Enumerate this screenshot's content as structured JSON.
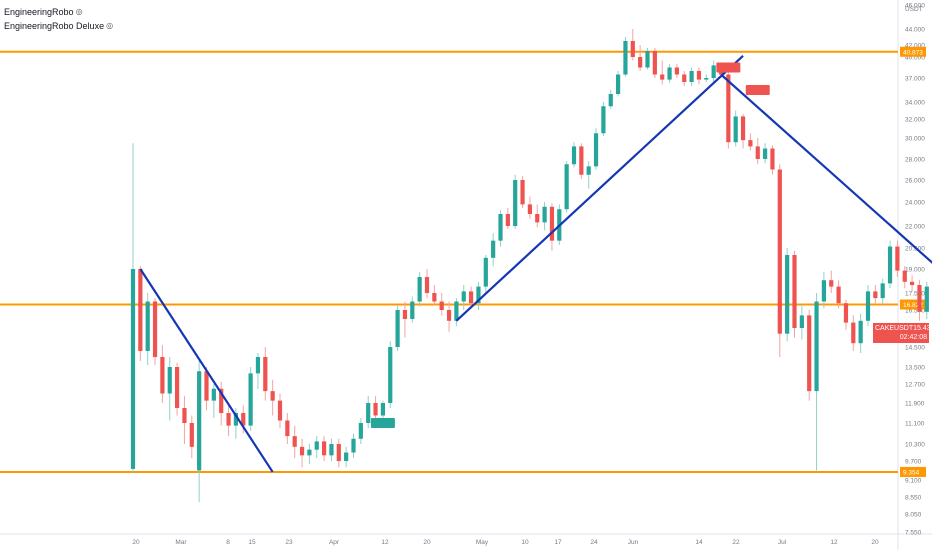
{
  "legend": {
    "indicators": [
      {
        "name": "EngineeringRobo",
        "icon": "eye-icon"
      },
      {
        "name": "EngineeringRobo Deluxe",
        "icon": "eye-icon"
      }
    ]
  },
  "price_tag": {
    "symbol": "CAKEUSDT",
    "price": "15.430",
    "countdown": "02:42:08",
    "color": "#ef5350"
  },
  "chart_data": {
    "type": "candlestick",
    "currency_label": "USDT",
    "y_ticks": [
      "46.000",
      "44.000",
      "42.000",
      "40.000",
      "37.000",
      "34.000",
      "32.000",
      "30.000",
      "28.000",
      "26.000",
      "24.000",
      "22.000",
      "20.500",
      "19.000",
      "17.500",
      "16.500",
      "15.500",
      "14.500",
      "13.500",
      "12.700",
      "11.900",
      "11.100",
      "10.300",
      "9.700",
      "9.100",
      "8.550",
      "8.050",
      "7.550"
    ],
    "x_ticks": [
      "20",
      "Mar",
      "8",
      "15",
      "23",
      "Apr",
      "12",
      "20",
      "May",
      "10",
      "17",
      "24",
      "Jun",
      "14",
      "22",
      "Jul",
      "12",
      "20"
    ],
    "horizontal_levels": [
      {
        "price": 40.873,
        "label": "40.873",
        "color": "#ff9800"
      },
      {
        "price": 16.822,
        "label": "16.822",
        "color": "#ff9800"
      },
      {
        "price": 9.354,
        "label": "9.354",
        "color": "#ff9800"
      }
    ],
    "trendlines": [
      {
        "from": {
          "x": "Feb 21",
          "y": 19.0
        },
        "to": {
          "x": "Mar 11",
          "y": 9.354
        }
      },
      {
        "from": {
          "x": "Apr 5",
          "y": 15.9
        },
        "to": {
          "x": "May 14",
          "y": 40.2
        }
      },
      {
        "from": {
          "x": "May 11",
          "y": 37.5
        },
        "to": {
          "x": "Jul 10",
          "y": 9.5
        }
      }
    ],
    "signals": [
      {
        "type": "buy",
        "date": "Mar 26",
        "price": 11.1,
        "color": "#26a69a"
      },
      {
        "type": "sell",
        "date": "May 12",
        "price": 38.5,
        "color": "#ef5350"
      },
      {
        "type": "sell",
        "date": "May 16",
        "price": 35.5,
        "color": "#ef5350"
      }
    ],
    "up_color": "#26a69a",
    "down_color": "#ef5350",
    "candles": [
      {
        "d": "Feb 20",
        "o": 9.45,
        "h": 29.5,
        "l": 9.3,
        "c": 19.0
      },
      {
        "d": "Feb 21",
        "o": 19.0,
        "h": 19.2,
        "l": 13.8,
        "c": 14.3
      },
      {
        "d": "Feb 22",
        "o": 14.3,
        "h": 17.5,
        "l": 13.6,
        "c": 17.0
      },
      {
        "d": "Feb 23",
        "o": 17.0,
        "h": 17.2,
        "l": 13.6,
        "c": 14.0
      },
      {
        "d": "Feb 24",
        "o": 14.0,
        "h": 14.6,
        "l": 11.9,
        "c": 12.3
      },
      {
        "d": "Feb 25",
        "o": 12.3,
        "h": 14.0,
        "l": 11.2,
        "c": 13.5
      },
      {
        "d": "Feb 26",
        "o": 13.5,
        "h": 13.7,
        "l": 11.4,
        "c": 11.7
      },
      {
        "d": "Feb 27",
        "o": 11.7,
        "h": 12.2,
        "l": 10.3,
        "c": 11.1
      },
      {
        "d": "Feb 28",
        "o": 11.1,
        "h": 11.4,
        "l": 9.8,
        "c": 10.2
      },
      {
        "d": "Mar 1",
        "o": 9.4,
        "h": 13.8,
        "l": 8.4,
        "c": 13.3
      },
      {
        "d": "Mar 2",
        "o": 13.3,
        "h": 13.5,
        "l": 11.6,
        "c": 12.0
      },
      {
        "d": "Mar 3",
        "o": 12.0,
        "h": 12.7,
        "l": 11.3,
        "c": 12.5
      },
      {
        "d": "Mar 4",
        "o": 12.5,
        "h": 12.8,
        "l": 11.0,
        "c": 11.5
      },
      {
        "d": "Mar 5",
        "o": 11.5,
        "h": 11.9,
        "l": 10.6,
        "c": 11.0
      },
      {
        "d": "Mar 6",
        "o": 11.0,
        "h": 11.7,
        "l": 10.5,
        "c": 11.5
      },
      {
        "d": "Mar 7",
        "o": 11.5,
        "h": 11.8,
        "l": 10.7,
        "c": 11.0
      },
      {
        "d": "Mar 8",
        "o": 11.0,
        "h": 13.5,
        "l": 10.8,
        "c": 13.2
      },
      {
        "d": "Mar 9",
        "o": 13.2,
        "h": 14.2,
        "l": 12.5,
        "c": 14.0
      },
      {
        "d": "Mar 10",
        "o": 14.0,
        "h": 14.5,
        "l": 12.0,
        "c": 12.4
      },
      {
        "d": "Mar 11",
        "o": 12.4,
        "h": 12.9,
        "l": 11.4,
        "c": 12.0
      },
      {
        "d": "Mar 12",
        "o": 12.0,
        "h": 12.3,
        "l": 10.9,
        "c": 11.2
      },
      {
        "d": "Mar 13",
        "o": 11.2,
        "h": 11.5,
        "l": 10.3,
        "c": 10.6
      },
      {
        "d": "Mar 14",
        "o": 10.6,
        "h": 11.0,
        "l": 9.8,
        "c": 10.2
      },
      {
        "d": "Mar 15",
        "o": 10.2,
        "h": 10.5,
        "l": 9.5,
        "c": 9.9
      },
      {
        "d": "Mar 16",
        "o": 9.9,
        "h": 10.3,
        "l": 9.6,
        "c": 10.1
      },
      {
        "d": "Mar 17",
        "o": 10.1,
        "h": 10.6,
        "l": 9.8,
        "c": 10.4
      },
      {
        "d": "Mar 18",
        "o": 10.4,
        "h": 10.6,
        "l": 9.7,
        "c": 9.9
      },
      {
        "d": "Mar 19",
        "o": 9.9,
        "h": 10.5,
        "l": 9.7,
        "c": 10.3
      },
      {
        "d": "Mar 20",
        "o": 10.3,
        "h": 10.5,
        "l": 9.5,
        "c": 9.7
      },
      {
        "d": "Mar 21",
        "o": 9.7,
        "h": 10.2,
        "l": 9.5,
        "c": 10.0
      },
      {
        "d": "Mar 22",
        "o": 10.0,
        "h": 10.7,
        "l": 9.8,
        "c": 10.5
      },
      {
        "d": "Mar 23",
        "o": 10.5,
        "h": 11.3,
        "l": 10.3,
        "c": 11.1
      },
      {
        "d": "Mar 24",
        "o": 11.1,
        "h": 12.2,
        "l": 10.9,
        "c": 11.9
      },
      {
        "d": "Mar 25",
        "o": 11.9,
        "h": 12.2,
        "l": 11.2,
        "c": 11.4
      },
      {
        "d": "Mar 26",
        "o": 11.4,
        "h": 12.0,
        "l": 11.2,
        "c": 11.9
      },
      {
        "d": "Mar 27",
        "o": 11.9,
        "h": 14.8,
        "l": 11.7,
        "c": 14.5
      },
      {
        "d": "Mar 28",
        "o": 14.5,
        "h": 16.8,
        "l": 14.3,
        "c": 16.5
      },
      {
        "d": "Mar 29",
        "o": 16.5,
        "h": 17.0,
        "l": 15.0,
        "c": 16.0
      },
      {
        "d": "Mar 30",
        "o": 16.0,
        "h": 17.3,
        "l": 15.8,
        "c": 17.0
      },
      {
        "d": "Mar 31",
        "o": 17.0,
        "h": 18.8,
        "l": 16.7,
        "c": 18.5
      },
      {
        "d": "Apr 1",
        "o": 18.5,
        "h": 19.0,
        "l": 17.2,
        "c": 17.5
      },
      {
        "d": "Apr 2",
        "o": 17.5,
        "h": 18.0,
        "l": 16.8,
        "c": 17.0
      },
      {
        "d": "Apr 3",
        "o": 17.0,
        "h": 17.5,
        "l": 16.2,
        "c": 16.5
      },
      {
        "d": "Apr 4",
        "o": 16.5,
        "h": 17.0,
        "l": 15.3,
        "c": 15.9
      },
      {
        "d": "Apr 5",
        "o": 15.9,
        "h": 17.2,
        "l": 15.6,
        "c": 17.0
      },
      {
        "d": "Apr 6",
        "o": 17.0,
        "h": 18.0,
        "l": 16.5,
        "c": 17.6
      },
      {
        "d": "Apr 7",
        "o": 17.6,
        "h": 17.9,
        "l": 16.6,
        "c": 16.9
      },
      {
        "d": "Apr 8",
        "o": 16.9,
        "h": 18.2,
        "l": 16.5,
        "c": 17.9
      },
      {
        "d": "Apr 9",
        "o": 17.9,
        "h": 20.0,
        "l": 17.5,
        "c": 19.8
      },
      {
        "d": "Apr 10",
        "o": 19.8,
        "h": 21.5,
        "l": 19.2,
        "c": 21.0
      },
      {
        "d": "Apr 11",
        "o": 21.0,
        "h": 23.3,
        "l": 20.6,
        "c": 23.0
      },
      {
        "d": "Apr 12",
        "o": 23.0,
        "h": 23.5,
        "l": 21.8,
        "c": 22.0
      },
      {
        "d": "Apr 13",
        "o": 22.0,
        "h": 26.5,
        "l": 21.8,
        "c": 26.0
      },
      {
        "d": "Apr 14",
        "o": 26.0,
        "h": 26.4,
        "l": 23.5,
        "c": 23.8
      },
      {
        "d": "Apr 15",
        "o": 23.8,
        "h": 24.5,
        "l": 22.6,
        "c": 23.0
      },
      {
        "d": "Apr 16",
        "o": 23.0,
        "h": 23.8,
        "l": 21.9,
        "c": 22.3
      },
      {
        "d": "Apr 17",
        "o": 22.3,
        "h": 24.0,
        "l": 21.7,
        "c": 23.6
      },
      {
        "d": "Apr 18",
        "o": 23.6,
        "h": 23.9,
        "l": 20.3,
        "c": 21.0
      },
      {
        "d": "Apr 19",
        "o": 21.0,
        "h": 23.8,
        "l": 20.7,
        "c": 23.4
      },
      {
        "d": "Apr 20",
        "o": 23.4,
        "h": 27.8,
        "l": 23.1,
        "c": 27.5
      },
      {
        "d": "Apr 21",
        "o": 27.5,
        "h": 29.6,
        "l": 27.2,
        "c": 29.2
      },
      {
        "d": "Apr 22",
        "o": 29.2,
        "h": 29.5,
        "l": 26.1,
        "c": 26.5
      },
      {
        "d": "Apr 23",
        "o": 26.5,
        "h": 27.8,
        "l": 25.2,
        "c": 27.3
      },
      {
        "d": "Apr 24",
        "o": 27.3,
        "h": 31.0,
        "l": 27.0,
        "c": 30.5
      },
      {
        "d": "Apr 25",
        "o": 30.5,
        "h": 34.0,
        "l": 30.2,
        "c": 33.5
      },
      {
        "d": "Apr 26",
        "o": 33.5,
        "h": 35.5,
        "l": 33.2,
        "c": 35.0
      },
      {
        "d": "Apr 27",
        "o": 35.0,
        "h": 38.0,
        "l": 34.7,
        "c": 37.5
      },
      {
        "d": "Apr 28",
        "o": 37.5,
        "h": 43.0,
        "l": 37.2,
        "c": 42.5
      },
      {
        "d": "Apr 29",
        "o": 42.5,
        "h": 44.0,
        "l": 39.5,
        "c": 40.0
      },
      {
        "d": "Apr 30",
        "o": 40.0,
        "h": 42.0,
        "l": 38.0,
        "c": 38.5
      },
      {
        "d": "May 1",
        "o": 38.5,
        "h": 41.5,
        "l": 38.2,
        "c": 41.0
      },
      {
        "d": "May 2",
        "o": 41.0,
        "h": 41.5,
        "l": 37.0,
        "c": 37.5
      },
      {
        "d": "May 3",
        "o": 37.5,
        "h": 39.5,
        "l": 36.2,
        "c": 36.8
      },
      {
        "d": "May 4",
        "o": 36.8,
        "h": 39.0,
        "l": 36.4,
        "c": 38.5
      },
      {
        "d": "May 5",
        "o": 38.5,
        "h": 39.0,
        "l": 37.0,
        "c": 37.5
      },
      {
        "d": "May 6",
        "o": 37.5,
        "h": 38.0,
        "l": 36.0,
        "c": 36.5
      },
      {
        "d": "May 7",
        "o": 36.5,
        "h": 38.5,
        "l": 36.0,
        "c": 38.0
      },
      {
        "d": "May 8",
        "o": 38.0,
        "h": 38.5,
        "l": 36.2,
        "c": 36.8
      },
      {
        "d": "May 9",
        "o": 36.8,
        "h": 37.5,
        "l": 36.5,
        "c": 37.0
      },
      {
        "d": "May 10",
        "o": 37.0,
        "h": 39.5,
        "l": 36.5,
        "c": 38.8
      },
      {
        "d": "May 11",
        "o": 38.8,
        "h": 39.2,
        "l": 37.0,
        "c": 37.5
      },
      {
        "d": "May 12",
        "o": 37.5,
        "h": 38.0,
        "l": 29.0,
        "c": 29.6
      },
      {
        "d": "May 13",
        "o": 29.6,
        "h": 33.0,
        "l": 29.2,
        "c": 32.3
      },
      {
        "d": "May 14",
        "o": 32.3,
        "h": 32.6,
        "l": 29.0,
        "c": 29.8
      },
      {
        "d": "May 15",
        "o": 29.8,
        "h": 30.5,
        "l": 28.8,
        "c": 29.2
      },
      {
        "d": "May 16",
        "o": 29.2,
        "h": 30.0,
        "l": 27.5,
        "c": 28.0
      },
      {
        "d": "May 17",
        "o": 28.0,
        "h": 29.5,
        "l": 27.6,
        "c": 29.0
      },
      {
        "d": "May 18",
        "o": 29.0,
        "h": 29.3,
        "l": 26.5,
        "c": 27.0
      },
      {
        "d": "May 19",
        "o": 27.0,
        "h": 27.5,
        "l": 14.0,
        "c": 15.2
      },
      {
        "d": "May 20",
        "o": 15.2,
        "h": 20.5,
        "l": 14.8,
        "c": 20.0
      },
      {
        "d": "May 21",
        "o": 20.0,
        "h": 20.3,
        "l": 15.0,
        "c": 15.5
      },
      {
        "d": "May 22",
        "o": 15.5,
        "h": 16.8,
        "l": 14.9,
        "c": 16.2
      },
      {
        "d": "May 23",
        "o": 16.2,
        "h": 16.5,
        "l": 12.0,
        "c": 12.4
      },
      {
        "d": "May 24",
        "o": 12.4,
        "h": 17.5,
        "l": 9.4,
        "c": 17.0
      },
      {
        "d": "May 25",
        "o": 17.0,
        "h": 18.8,
        "l": 16.6,
        "c": 18.3
      },
      {
        "d": "May 26",
        "o": 18.3,
        "h": 18.9,
        "l": 17.5,
        "c": 17.9
      },
      {
        "d": "May 27",
        "o": 17.9,
        "h": 18.3,
        "l": 16.6,
        "c": 16.9
      },
      {
        "d": "May 28",
        "o": 16.9,
        "h": 17.1,
        "l": 15.4,
        "c": 15.8
      },
      {
        "d": "May 29",
        "o": 15.8,
        "h": 16.2,
        "l": 14.3,
        "c": 14.7
      },
      {
        "d": "May 30",
        "o": 14.7,
        "h": 16.3,
        "l": 14.2,
        "c": 15.9
      },
      {
        "d": "May 31",
        "o": 15.9,
        "h": 18.0,
        "l": 15.6,
        "c": 17.6
      },
      {
        "d": "Jun 1",
        "o": 17.6,
        "h": 18.0,
        "l": 16.9,
        "c": 17.2
      },
      {
        "d": "Jun 2",
        "o": 17.2,
        "h": 18.4,
        "l": 16.8,
        "c": 18.1
      },
      {
        "d": "Jun 3",
        "o": 18.1,
        "h": 21.0,
        "l": 17.8,
        "c": 20.6
      },
      {
        "d": "Jun 4",
        "o": 20.6,
        "h": 21.0,
        "l": 18.5,
        "c": 18.9
      },
      {
        "d": "Jun 5",
        "o": 18.9,
        "h": 19.2,
        "l": 17.8,
        "c": 18.2
      },
      {
        "d": "Jun 6",
        "o": 18.2,
        "h": 18.6,
        "l": 17.6,
        "c": 18.0
      },
      {
        "d": "Jun 7",
        "o": 18.0,
        "h": 18.3,
        "l": 15.9,
        "c": 16.4
      },
      {
        "d": "Jun 8",
        "o": 16.4,
        "h": 18.2,
        "l": 16.0,
        "c": 17.9
      },
      {
        "d": "Jun 9",
        "o": 17.9,
        "h": 18.3,
        "l": 16.5,
        "c": 16.9
      },
      {
        "d": "Jun 10",
        "o": 16.9,
        "h": 17.3,
        "l": 15.5,
        "c": 15.9
      },
      {
        "d": "Jun 11",
        "o": 15.9,
        "h": 16.3,
        "l": 15.3,
        "c": 15.6
      },
      {
        "d": "Jun 12",
        "o": 15.6,
        "h": 17.3,
        "l": 15.4,
        "c": 17.0
      },
      {
        "d": "Jun 13",
        "o": 17.0,
        "h": 17.5,
        "l": 16.4,
        "c": 16.8
      },
      {
        "d": "Jun 14",
        "o": 16.8,
        "h": 17.1,
        "l": 16.0,
        "c": 16.2
      },
      {
        "d": "Jun 15",
        "o": 16.2,
        "h": 16.6,
        "l": 15.2,
        "c": 15.43
      }
    ]
  }
}
